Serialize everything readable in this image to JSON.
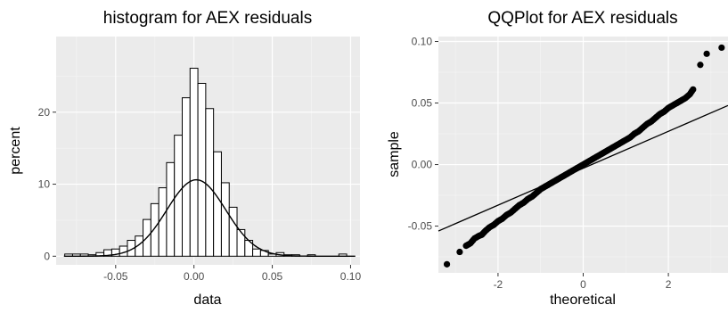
{
  "chart_data": [
    {
      "type": "histogram",
      "title": "histogram for AEX residuals",
      "xlabel": "data",
      "ylabel": "percent",
      "xlim": [
        -0.088,
        0.106
      ],
      "ylim": [
        -1.2,
        30.5
      ],
      "x_ticks": [
        -0.05,
        0.0,
        0.05,
        0.1
      ],
      "x_tick_labels": [
        "-0.05",
        "0.00",
        "0.05",
        "0.10"
      ],
      "y_ticks": [
        0,
        10,
        20
      ],
      "y_tick_labels": [
        "0",
        "10",
        "20"
      ],
      "grid": true,
      "bins": [
        {
          "x0": -0.0825,
          "x1": -0.0775,
          "value": 0.3
        },
        {
          "x0": -0.0775,
          "x1": -0.0725,
          "value": 0.3
        },
        {
          "x0": -0.0725,
          "x1": -0.0675,
          "value": 0.3
        },
        {
          "x0": -0.0675,
          "x1": -0.0625,
          "value": 0.2
        },
        {
          "x0": -0.0625,
          "x1": -0.0575,
          "value": 0.5
        },
        {
          "x0": -0.0575,
          "x1": -0.0525,
          "value": 0.9
        },
        {
          "x0": -0.0525,
          "x1": -0.0475,
          "value": 1.0
        },
        {
          "x0": -0.0475,
          "x1": -0.0425,
          "value": 1.4
        },
        {
          "x0": -0.0425,
          "x1": -0.0375,
          "value": 2.2
        },
        {
          "x0": -0.0375,
          "x1": -0.0325,
          "value": 2.8
        },
        {
          "x0": -0.0325,
          "x1": -0.0275,
          "value": 5.1
        },
        {
          "x0": -0.0275,
          "x1": -0.0225,
          "value": 7.3
        },
        {
          "x0": -0.0225,
          "x1": -0.0175,
          "value": 9.5
        },
        {
          "x0": -0.0175,
          "x1": -0.0125,
          "value": 13.0
        },
        {
          "x0": -0.0125,
          "x1": -0.0075,
          "value": 16.8
        },
        {
          "x0": -0.0075,
          "x1": -0.0025,
          "value": 22.0
        },
        {
          "x0": -0.0025,
          "x1": 0.0025,
          "value": 26.1
        },
        {
          "x0": 0.0025,
          "x1": 0.0075,
          "value": 24.0
        },
        {
          "x0": 0.0075,
          "x1": 0.0125,
          "value": 20.5
        },
        {
          "x0": 0.0125,
          "x1": 0.0175,
          "value": 14.5
        },
        {
          "x0": 0.0175,
          "x1": 0.0225,
          "value": 10.2
        },
        {
          "x0": 0.0225,
          "x1": 0.0275,
          "value": 6.8
        },
        {
          "x0": 0.0275,
          "x1": 0.0325,
          "value": 3.7
        },
        {
          "x0": 0.0325,
          "x1": 0.0375,
          "value": 2.2
        },
        {
          "x0": 0.0375,
          "x1": 0.0425,
          "value": 1.0
        },
        {
          "x0": 0.0425,
          "x1": 0.0475,
          "value": 0.8
        },
        {
          "x0": 0.0475,
          "x1": 0.0525,
          "value": 0.3
        },
        {
          "x0": 0.0525,
          "x1": 0.0575,
          "value": 0.5
        },
        {
          "x0": 0.0575,
          "x1": 0.0625,
          "value": 0.2
        },
        {
          "x0": 0.0625,
          "x1": 0.0675,
          "value": 0.2
        },
        {
          "x0": 0.0725,
          "x1": 0.0775,
          "value": 0.2
        },
        {
          "x0": 0.0925,
          "x1": 0.0975,
          "value": 0.3
        }
      ],
      "density_curve": {
        "mean": 0.0015,
        "sd": 0.0188,
        "scale_percent": 0.5
      }
    },
    {
      "type": "scatter",
      "title": "QQPlot for AEX residuals",
      "xlabel": "theoretical",
      "ylabel": "sample",
      "xlim": [
        -3.4,
        3.4
      ],
      "ylim": [
        -0.088,
        0.104
      ],
      "x_ticks": [
        -2,
        0,
        2
      ],
      "x_tick_labels": [
        "-2",
        "0",
        "2"
      ],
      "y_ticks": [
        -0.05,
        0.0,
        0.05,
        0.1
      ],
      "y_tick_labels": [
        "-0.05",
        "0.00",
        "0.05",
        "0.10"
      ],
      "grid": true,
      "points": [
        [
          -3.2,
          -0.081
        ],
        [
          -2.9,
          -0.071
        ],
        [
          -2.75,
          -0.066
        ],
        [
          -2.65,
          -0.064
        ],
        [
          -2.55,
          -0.06
        ],
        [
          -2.45,
          -0.058
        ],
        [
          -2.38,
          -0.057
        ],
        [
          -2.3,
          -0.054
        ],
        [
          -2.2,
          -0.051
        ],
        [
          -2.1,
          -0.049
        ],
        [
          -2.0,
          -0.046
        ],
        [
          -1.9,
          -0.044
        ],
        [
          -1.8,
          -0.041
        ],
        [
          -1.7,
          -0.039
        ],
        [
          -1.6,
          -0.036
        ],
        [
          -1.5,
          -0.033
        ],
        [
          -1.4,
          -0.031
        ],
        [
          -1.3,
          -0.028
        ],
        [
          -1.2,
          -0.026
        ],
        [
          -1.1,
          -0.023
        ],
        [
          -1.0,
          -0.02
        ],
        [
          -0.9,
          -0.018
        ],
        [
          -0.8,
          -0.016
        ],
        [
          -0.7,
          -0.014
        ],
        [
          -0.6,
          -0.012
        ],
        [
          -0.5,
          -0.01
        ],
        [
          -0.4,
          -0.008
        ],
        [
          -0.3,
          -0.006
        ],
        [
          -0.2,
          -0.004
        ],
        [
          -0.1,
          -0.002
        ],
        [
          0.0,
          0.0
        ],
        [
          0.1,
          0.002
        ],
        [
          0.2,
          0.004
        ],
        [
          0.3,
          0.006
        ],
        [
          0.4,
          0.008
        ],
        [
          0.5,
          0.01
        ],
        [
          0.6,
          0.012
        ],
        [
          0.7,
          0.014
        ],
        [
          0.8,
          0.016
        ],
        [
          0.9,
          0.018
        ],
        [
          1.0,
          0.02
        ],
        [
          1.1,
          0.022
        ],
        [
          1.2,
          0.025
        ],
        [
          1.3,
          0.027
        ],
        [
          1.4,
          0.03
        ],
        [
          1.5,
          0.033
        ],
        [
          1.6,
          0.035
        ],
        [
          1.7,
          0.038
        ],
        [
          1.8,
          0.041
        ],
        [
          1.9,
          0.043
        ],
        [
          2.0,
          0.046
        ],
        [
          2.1,
          0.048
        ],
        [
          2.2,
          0.05
        ],
        [
          2.3,
          0.052
        ],
        [
          2.4,
          0.054
        ],
        [
          2.5,
          0.057
        ],
        [
          2.58,
          0.061
        ],
        [
          2.75,
          0.081
        ],
        [
          2.9,
          0.09
        ],
        [
          3.25,
          0.095
        ]
      ],
      "reference_line": {
        "x": [
          -3.4,
          3.4
        ],
        "y": [
          -0.054,
          0.048
        ]
      }
    }
  ]
}
